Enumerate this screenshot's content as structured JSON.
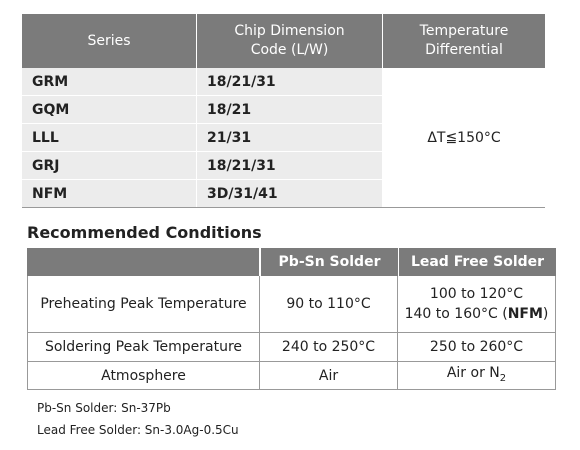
{
  "table1": {
    "headers": [
      [
        "Series"
      ],
      [
        "Chip Dimension",
        "Code (L/W)"
      ],
      [
        "Temperature",
        "Differential"
      ]
    ],
    "rows": [
      [
        "GRM",
        "18/21/31"
      ],
      [
        "GQM",
        "18/21"
      ],
      [
        "LLL",
        "21/31"
      ],
      [
        "GRJ",
        "18/21/31"
      ],
      [
        "NFM",
        "3D/31/41"
      ]
    ],
    "temperature": "ΔT≦150°C"
  },
  "heading": "Recommended Conditions",
  "table2": {
    "headers": [
      "Pb-Sn Solder",
      "Lead Free Solder"
    ],
    "rows": [
      {
        "label": "Preheating Peak Temperature",
        "pbsn": "90 to 110°C",
        "leadfree": [
          "100 to 120°C",
          [
            "140 to 160°C (",
            "NFM",
            ")"
          ]
        ]
      },
      {
        "label": "Soldering Peak Temperature",
        "pbsn": "240 to 250°C",
        "leadfree": [
          "250 to 260°C"
        ]
      },
      {
        "label": "Atmosphere",
        "pbsn": "Air",
        "leadfree": [
          [
            "Air or N",
            "2"
          ]
        ]
      }
    ]
  },
  "notes": [
    "Pb-Sn Solder: Sn-37Pb",
    "Lead Free Solder: Sn-3.0Ag-0.5Cu"
  ]
}
